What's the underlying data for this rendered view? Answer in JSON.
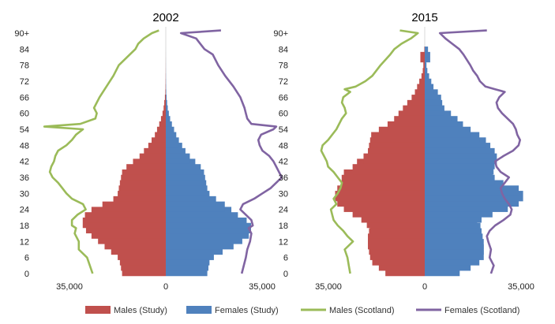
{
  "chart_data": [
    {
      "type": "bar",
      "title": "2002",
      "x_ticks": [
        "35,000",
        "0",
        "35,000"
      ],
      "y_ticks": [
        "0",
        "6",
        "12",
        "18",
        "24",
        "30",
        "36",
        "42",
        "48",
        "54",
        "60",
        "66",
        "72",
        "78",
        "84",
        "90+"
      ],
      "study_ages": [
        0,
        2,
        4,
        6,
        8,
        10,
        12,
        14,
        16,
        18,
        20,
        22,
        24,
        26,
        28,
        30,
        32,
        34,
        36,
        38,
        40,
        42,
        44,
        46,
        48,
        50,
        52,
        54,
        56,
        58,
        60,
        62,
        64,
        66,
        68,
        70,
        72,
        74,
        76,
        78,
        80,
        82
      ],
      "series": [
        {
          "name": "Males (Study)",
          "color": "#c0504d",
          "values": [
            20000,
            20500,
            21000,
            22000,
            25000,
            28000,
            31000,
            34000,
            36500,
            38000,
            37000,
            34000,
            29000,
            24000,
            22000,
            21500,
            21000,
            20500,
            20000,
            18000,
            15000,
            12000,
            10000,
            8000,
            6500,
            5000,
            4000,
            3000,
            2200,
            1500,
            1000,
            700,
            400,
            200,
            100,
            60,
            40,
            25,
            15,
            10,
            5,
            2
          ]
        },
        {
          "name": "Females (Study)",
          "color": "#4f81bd",
          "values": [
            19000,
            19500,
            20000,
            22000,
            26000,
            31000,
            35000,
            38000,
            39000,
            37000,
            33000,
            30000,
            27000,
            23000,
            20000,
            19000,
            18500,
            18000,
            17500,
            16000,
            13500,
            11000,
            9000,
            7500,
            6000,
            4800,
            3800,
            2800,
            2000,
            1400,
            900,
            600,
            350,
            200,
            100,
            60,
            40,
            25,
            15,
            10,
            5,
            2
          ]
        },
        {
          "name": "Males (Scotland)",
          "color": "#9bbb59",
          "points": [
            [
              0,
              53000
            ],
            [
              6,
              57000
            ],
            [
              9,
              63000
            ],
            [
              12,
              63000
            ],
            [
              15,
              66000
            ],
            [
              17,
              65000
            ],
            [
              18,
              68000
            ],
            [
              20,
              68000
            ],
            [
              22,
              64000
            ],
            [
              24,
              58000
            ],
            [
              26,
              60000
            ],
            [
              28,
              68000
            ],
            [
              30,
              72000
            ],
            [
              32,
              75000
            ],
            [
              34,
              78000
            ],
            [
              36,
              82000
            ],
            [
              38,
              84000
            ],
            [
              40,
              83000
            ],
            [
              42,
              81000
            ],
            [
              44,
              80000
            ],
            [
              46,
              78000
            ],
            [
              48,
              72000
            ],
            [
              50,
              68000
            ],
            [
              52,
              65000
            ],
            [
              54,
              60000
            ],
            [
              55,
              88000
            ],
            [
              56,
              62000
            ],
            [
              58,
              51000
            ],
            [
              60,
              50000
            ],
            [
              62,
              52000
            ],
            [
              66,
              48000
            ],
            [
              70,
              43000
            ],
            [
              74,
              38000
            ],
            [
              78,
              34000
            ],
            [
              82,
              26000
            ],
            [
              84,
              22000
            ],
            [
              86,
              20000
            ],
            [
              88,
              16000
            ],
            [
              90,
              10000
            ],
            [
              91,
              5000
            ]
          ]
        },
        {
          "name": "Females (Scotland)",
          "color": "#8064a2",
          "points": [
            [
              0,
              55000
            ],
            [
              6,
              58000
            ],
            [
              9,
              59000
            ],
            [
              12,
              61000
            ],
            [
              15,
              62000
            ],
            [
              17,
              60000
            ],
            [
              18,
              63000
            ],
            [
              20,
              62000
            ],
            [
              22,
              58000
            ],
            [
              24,
              54000
            ],
            [
              26,
              56000
            ],
            [
              28,
              64000
            ],
            [
              30,
              70000
            ],
            [
              32,
              76000
            ],
            [
              34,
              80000
            ],
            [
              36,
              84000
            ],
            [
              38,
              82000
            ],
            [
              40,
              80000
            ],
            [
              42,
              78000
            ],
            [
              44,
              75000
            ],
            [
              46,
              70000
            ],
            [
              48,
              68000
            ],
            [
              50,
              67000
            ],
            [
              52,
              69000
            ],
            [
              54,
              78000
            ],
            [
              55,
              80000
            ],
            [
              56,
              62000
            ],
            [
              58,
              59000
            ],
            [
              60,
              58000
            ],
            [
              62,
              57000
            ],
            [
              66,
              54000
            ],
            [
              70,
              49000
            ],
            [
              74,
              43000
            ],
            [
              78,
              38000
            ],
            [
              82,
              34000
            ],
            [
              84,
              28000
            ],
            [
              86,
              25000
            ],
            [
              88,
              22000
            ],
            [
              90,
              11000
            ],
            [
              91,
              40000
            ]
          ]
        }
      ]
    },
    {
      "type": "bar",
      "title": "2015",
      "x_ticks": [
        "35,000",
        "0",
        "35,000"
      ],
      "y_ticks": [
        "0",
        "6",
        "12",
        "18",
        "24",
        "30",
        "36",
        "42",
        "48",
        "54",
        "60",
        "66",
        "72",
        "78",
        "84",
        "90+"
      ],
      "study_ages": [
        0,
        2,
        4,
        6,
        8,
        10,
        12,
        14,
        16,
        18,
        20,
        22,
        24,
        26,
        28,
        30,
        32,
        34,
        36,
        38,
        40,
        42,
        44,
        46,
        48,
        50,
        52,
        54,
        56,
        58,
        60,
        62,
        64,
        66,
        68,
        70,
        72,
        74,
        76,
        78,
        80,
        82
      ],
      "series": [
        {
          "name": "Males (Study)",
          "color": "#c0504d",
          "values": [
            18000,
            21000,
            24000,
            25000,
            25500,
            26000,
            26000,
            25500,
            25000,
            26500,
            29000,
            33000,
            37000,
            40000,
            41000,
            40000,
            38000,
            38000,
            37000,
            33000,
            31000,
            28000,
            26000,
            25500,
            25000,
            24500,
            21000,
            17000,
            14000,
            12000,
            10000,
            8000,
            6000,
            4500,
            3500,
            2500,
            1500,
            900,
            600,
            600,
            2000,
            200
          ]
        },
        {
          "name": "Females (Study)",
          "color": "#4f81bd",
          "values": [
            16000,
            21000,
            25000,
            27000,
            27000,
            27000,
            26500,
            26000,
            25500,
            24000,
            26000,
            31000,
            38000,
            43000,
            45000,
            43000,
            36000,
            32000,
            31000,
            31500,
            32000,
            33000,
            32000,
            30000,
            28000,
            25000,
            21000,
            17500,
            15000,
            12000,
            9000,
            8000,
            7500,
            6000,
            4000,
            3000,
            2000,
            1200,
            800,
            600,
            2500,
            1500
          ]
        },
        {
          "name": "Males (Scotland)",
          "color": "#9bbb59",
          "points": [
            [
              0,
              54000
            ],
            [
              3,
              55000
            ],
            [
              6,
              56000
            ],
            [
              9,
              58000
            ],
            [
              12,
              52000
            ],
            [
              14,
              56000
            ],
            [
              16,
              59000
            ],
            [
              18,
              63000
            ],
            [
              20,
              66000
            ],
            [
              22,
              67000
            ],
            [
              24,
              68000
            ],
            [
              26,
              64000
            ],
            [
              28,
              66000
            ],
            [
              30,
              63000
            ],
            [
              32,
              61000
            ],
            [
              34,
              60000
            ],
            [
              36,
              63000
            ],
            [
              38,
              66000
            ],
            [
              40,
              70000
            ],
            [
              42,
              71000
            ],
            [
              44,
              73000
            ],
            [
              46,
              75000
            ],
            [
              48,
              74000
            ],
            [
              50,
              70000
            ],
            [
              54,
              64000
            ],
            [
              58,
              60000
            ],
            [
              60,
              57000
            ],
            [
              62,
              58000
            ],
            [
              64,
              60000
            ],
            [
              66,
              59000
            ],
            [
              68,
              54000
            ],
            [
              69,
              58000
            ],
            [
              70,
              50000
            ],
            [
              72,
              43000
            ],
            [
              74,
              38000
            ],
            [
              76,
              35000
            ],
            [
              78,
              32000
            ],
            [
              82,
              25000
            ],
            [
              84,
              22000
            ],
            [
              86,
              17000
            ],
            [
              88,
              10000
            ],
            [
              90,
              5000
            ],
            [
              91,
              18000
            ]
          ]
        },
        {
          "name": "Females (Scotland)",
          "color": "#8064a2",
          "points": [
            [
              0,
              48000
            ],
            [
              3,
              50000
            ],
            [
              6,
              47000
            ],
            [
              9,
              48000
            ],
            [
              12,
              46000
            ],
            [
              14,
              45000
            ],
            [
              16,
              47000
            ],
            [
              18,
              51000
            ],
            [
              20,
              57000
            ],
            [
              22,
              62000
            ],
            [
              24,
              63000
            ],
            [
              26,
              61000
            ],
            [
              28,
              58000
            ],
            [
              30,
              56000
            ],
            [
              32,
              55000
            ],
            [
              34,
              58000
            ],
            [
              36,
              61000
            ],
            [
              38,
              55000
            ],
            [
              40,
              52000
            ],
            [
              42,
              51000
            ],
            [
              44,
              57000
            ],
            [
              46,
              64000
            ],
            [
              48,
              68000
            ],
            [
              50,
              69000
            ],
            [
              52,
              67000
            ],
            [
              54,
              66000
            ],
            [
              56,
              64000
            ],
            [
              58,
              60000
            ],
            [
              60,
              56000
            ],
            [
              62,
              53000
            ],
            [
              64,
              52000
            ],
            [
              66,
              54000
            ],
            [
              68,
              58000
            ],
            [
              69,
              51000
            ],
            [
              70,
              44000
            ],
            [
              72,
              40000
            ],
            [
              74,
              38000
            ],
            [
              76,
              35000
            ],
            [
              78,
              33000
            ],
            [
              82,
              28000
            ],
            [
              84,
              25000
            ],
            [
              86,
              20000
            ],
            [
              88,
              15000
            ],
            [
              90,
              11000
            ],
            [
              91,
              45000
            ]
          ]
        }
      ]
    }
  ],
  "legend": [
    {
      "label": "Males (Study)",
      "color": "#c0504d",
      "shape": "box"
    },
    {
      "label": "Females (Study)",
      "color": "#4f81bd",
      "shape": "box"
    },
    {
      "label": "Males (Scotland)",
      "color": "#9bbb59",
      "shape": "line"
    },
    {
      "label": "Females (Scotland)",
      "color": "#8064a2",
      "shape": "line"
    }
  ]
}
